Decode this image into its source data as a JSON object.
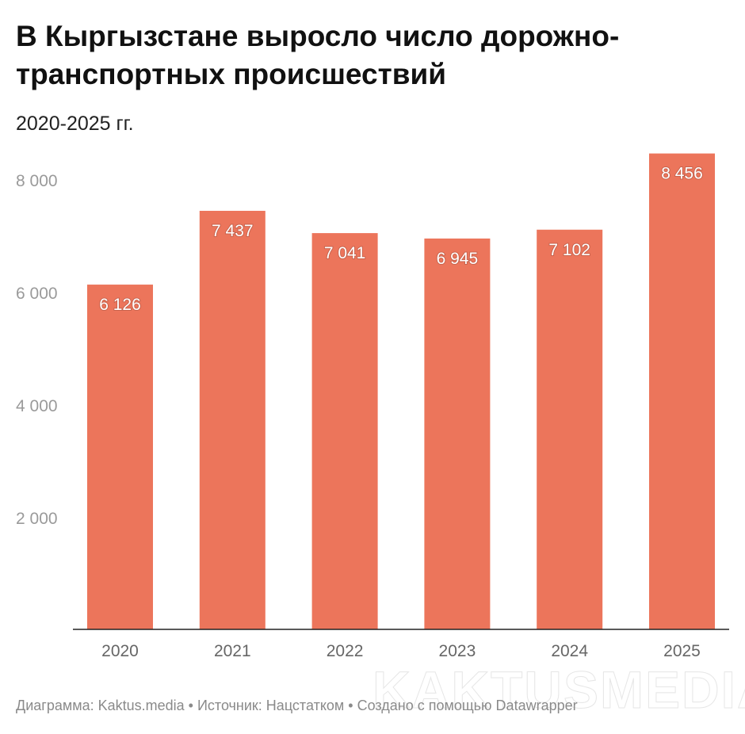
{
  "title": "В Кыргызстане выросло число дорожно-транспортных происшествий",
  "subtitle": "2020-2025 гг.",
  "footer": "Диаграмма: Kaktus.media  • Источник: Нацстатком • Создано с помощью Datawrapper",
  "watermark": "KAKTUSMEDIA",
  "colors": {
    "bar": "#ec755b",
    "axis_label": "#9a9a9a",
    "value_label": "#ffffff"
  },
  "chart_data": {
    "type": "bar",
    "categories": [
      "2020",
      "2021",
      "2022",
      "2023",
      "2024",
      "2025"
    ],
    "values": [
      6126,
      7437,
      7041,
      6945,
      7102,
      8456
    ],
    "value_labels": [
      "6 126",
      "7 437",
      "7 041",
      "6 945",
      "7 102",
      "8 456"
    ],
    "yticks": [
      2000,
      4000,
      6000,
      8000
    ],
    "ytick_labels": [
      "2 000",
      "4 000",
      "6 000",
      "8 000"
    ],
    "ylim": [
      0,
      8456
    ],
    "grid": false,
    "xlabel": "",
    "ylabel": ""
  }
}
